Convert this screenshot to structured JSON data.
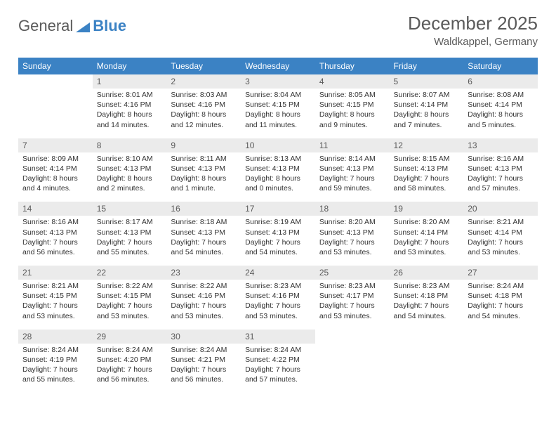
{
  "brand": {
    "part1": "General",
    "part2": "Blue"
  },
  "title": "December 2025",
  "location": "Waldkappel, Germany",
  "header_color": "#3b82c4",
  "daynum_bg": "#ebebeb",
  "text_color": "#333333",
  "day_headers": [
    "Sunday",
    "Monday",
    "Tuesday",
    "Wednesday",
    "Thursday",
    "Friday",
    "Saturday"
  ],
  "weeks": [
    {
      "nums": [
        "",
        "1",
        "2",
        "3",
        "4",
        "5",
        "6"
      ],
      "cells": [
        null,
        {
          "sunrise": "8:01 AM",
          "sunset": "4:16 PM",
          "daylight": "8 hours and 14 minutes."
        },
        {
          "sunrise": "8:03 AM",
          "sunset": "4:16 PM",
          "daylight": "8 hours and 12 minutes."
        },
        {
          "sunrise": "8:04 AM",
          "sunset": "4:15 PM",
          "daylight": "8 hours and 11 minutes."
        },
        {
          "sunrise": "8:05 AM",
          "sunset": "4:15 PM",
          "daylight": "8 hours and 9 minutes."
        },
        {
          "sunrise": "8:07 AM",
          "sunset": "4:14 PM",
          "daylight": "8 hours and 7 minutes."
        },
        {
          "sunrise": "8:08 AM",
          "sunset": "4:14 PM",
          "daylight": "8 hours and 5 minutes."
        }
      ]
    },
    {
      "nums": [
        "7",
        "8",
        "9",
        "10",
        "11",
        "12",
        "13"
      ],
      "cells": [
        {
          "sunrise": "8:09 AM",
          "sunset": "4:14 PM",
          "daylight": "8 hours and 4 minutes."
        },
        {
          "sunrise": "8:10 AM",
          "sunset": "4:13 PM",
          "daylight": "8 hours and 2 minutes."
        },
        {
          "sunrise": "8:11 AM",
          "sunset": "4:13 PM",
          "daylight": "8 hours and 1 minute."
        },
        {
          "sunrise": "8:13 AM",
          "sunset": "4:13 PM",
          "daylight": "8 hours and 0 minutes."
        },
        {
          "sunrise": "8:14 AM",
          "sunset": "4:13 PM",
          "daylight": "7 hours and 59 minutes."
        },
        {
          "sunrise": "8:15 AM",
          "sunset": "4:13 PM",
          "daylight": "7 hours and 58 minutes."
        },
        {
          "sunrise": "8:16 AM",
          "sunset": "4:13 PM",
          "daylight": "7 hours and 57 minutes."
        }
      ]
    },
    {
      "nums": [
        "14",
        "15",
        "16",
        "17",
        "18",
        "19",
        "20"
      ],
      "cells": [
        {
          "sunrise": "8:16 AM",
          "sunset": "4:13 PM",
          "daylight": "7 hours and 56 minutes."
        },
        {
          "sunrise": "8:17 AM",
          "sunset": "4:13 PM",
          "daylight": "7 hours and 55 minutes."
        },
        {
          "sunrise": "8:18 AM",
          "sunset": "4:13 PM",
          "daylight": "7 hours and 54 minutes."
        },
        {
          "sunrise": "8:19 AM",
          "sunset": "4:13 PM",
          "daylight": "7 hours and 54 minutes."
        },
        {
          "sunrise": "8:20 AM",
          "sunset": "4:13 PM",
          "daylight": "7 hours and 53 minutes."
        },
        {
          "sunrise": "8:20 AM",
          "sunset": "4:14 PM",
          "daylight": "7 hours and 53 minutes."
        },
        {
          "sunrise": "8:21 AM",
          "sunset": "4:14 PM",
          "daylight": "7 hours and 53 minutes."
        }
      ]
    },
    {
      "nums": [
        "21",
        "22",
        "23",
        "24",
        "25",
        "26",
        "27"
      ],
      "cells": [
        {
          "sunrise": "8:21 AM",
          "sunset": "4:15 PM",
          "daylight": "7 hours and 53 minutes."
        },
        {
          "sunrise": "8:22 AM",
          "sunset": "4:15 PM",
          "daylight": "7 hours and 53 minutes."
        },
        {
          "sunrise": "8:22 AM",
          "sunset": "4:16 PM",
          "daylight": "7 hours and 53 minutes."
        },
        {
          "sunrise": "8:23 AM",
          "sunset": "4:16 PM",
          "daylight": "7 hours and 53 minutes."
        },
        {
          "sunrise": "8:23 AM",
          "sunset": "4:17 PM",
          "daylight": "7 hours and 53 minutes."
        },
        {
          "sunrise": "8:23 AM",
          "sunset": "4:18 PM",
          "daylight": "7 hours and 54 minutes."
        },
        {
          "sunrise": "8:24 AM",
          "sunset": "4:18 PM",
          "daylight": "7 hours and 54 minutes."
        }
      ]
    },
    {
      "nums": [
        "28",
        "29",
        "30",
        "31",
        "",
        "",
        ""
      ],
      "cells": [
        {
          "sunrise": "8:24 AM",
          "sunset": "4:19 PM",
          "daylight": "7 hours and 55 minutes."
        },
        {
          "sunrise": "8:24 AM",
          "sunset": "4:20 PM",
          "daylight": "7 hours and 56 minutes."
        },
        {
          "sunrise": "8:24 AM",
          "sunset": "4:21 PM",
          "daylight": "7 hours and 56 minutes."
        },
        {
          "sunrise": "8:24 AM",
          "sunset": "4:22 PM",
          "daylight": "7 hours and 57 minutes."
        },
        null,
        null,
        null
      ]
    }
  ],
  "labels": {
    "sunrise": "Sunrise:",
    "sunset": "Sunset:",
    "daylight": "Daylight:"
  }
}
